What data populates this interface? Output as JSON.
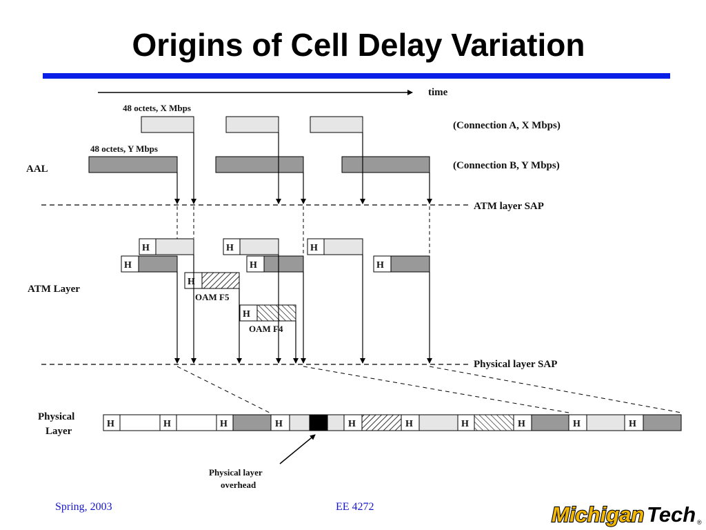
{
  "slide": {
    "title": "Origins of Cell Delay Variation"
  },
  "diagram": {
    "time_label": "time",
    "conn_a_size_label": "48 octets, X Mbps",
    "conn_b_size_label": "48 octets, Y Mbps",
    "conn_a_label": "(Connection A, X Mbps)",
    "conn_b_label": "(Connection B, Y Mbps)",
    "aal_label": "AAL",
    "atm_sap_label": "ATM layer SAP",
    "atm_layer_label": "ATM Layer",
    "phys_sap_label": "Physical layer SAP",
    "phys_layer_label_line1": "Physical",
    "phys_layer_label_line2": "Layer",
    "header_letter": "H",
    "oam_f5_label": "OAM F5",
    "oam_f4_label": "OAM F4",
    "overhead_label_line1": "Physical layer",
    "overhead_label_line2": "overhead"
  },
  "footer": {
    "left": "Spring, 2003",
    "center": "EE 4272",
    "logo_text_a": "Michigan",
    "logo_text_b": "Tech",
    "logo_mark": "®"
  },
  "colors": {
    "rule": "#0a1fe6",
    "footer_text": "#1616c8",
    "conn_a_fill": "#e6e6e6",
    "conn_b_fill": "#999999",
    "overhead_fill": "#000000",
    "logo_gold": "#f2b705"
  }
}
